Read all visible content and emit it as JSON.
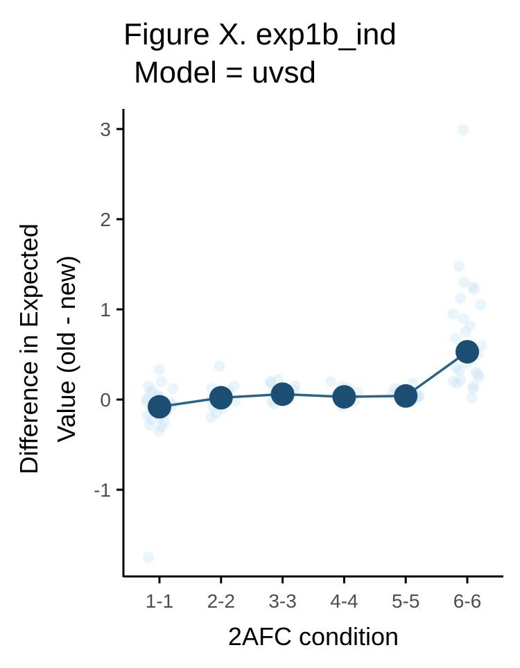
{
  "chart_data": {
    "type": "line",
    "title": "Figure X. exp1b_ind",
    "subtitle": "Model = uvsd",
    "xlabel": "2AFC condition",
    "ylabel_line1": "Difference in Expected",
    "ylabel_line2": "Value (old - new)",
    "categories": [
      "1-1",
      "2-2",
      "3-3",
      "4-4",
      "5-5",
      "6-6"
    ],
    "ylim": [
      -1.95,
      3.2
    ],
    "yticks": [
      -1,
      0,
      1,
      2,
      3
    ],
    "ytick_labels": [
      "-1",
      "0",
      "1",
      "2",
      "3"
    ],
    "grid": false,
    "legend": "none",
    "series": [
      {
        "values": [
          -0.08,
          0.02,
          0.06,
          0.03,
          0.04,
          0.53
        ]
      }
    ],
    "individual_points": [
      {
        "category": "1-1",
        "values": [
          0.33,
          0.2,
          0.15,
          0.1,
          0.05,
          0.02,
          0.0,
          -0.03,
          -0.05,
          -0.08,
          -0.1,
          -0.12,
          -0.15,
          -0.18,
          -0.2,
          -0.22,
          -0.25,
          -0.28,
          -0.3,
          -0.35,
          0.08,
          -0.02,
          -0.06,
          0.12,
          -1.75
        ]
      },
      {
        "category": "2-2",
        "values": [
          0.37,
          0.15,
          0.12,
          0.08,
          0.05,
          0.03,
          0.02,
          0.0,
          -0.02,
          -0.05,
          -0.08,
          -0.1,
          -0.15,
          -0.2,
          0.1,
          0.06
        ]
      },
      {
        "category": "3-3",
        "values": [
          0.22,
          0.2,
          0.15,
          0.12,
          0.1,
          0.08,
          0.06,
          0.05,
          0.03,
          0.02,
          0.0,
          -0.02,
          -0.05,
          0.04,
          0.18
        ]
      },
      {
        "category": "4-4",
        "values": [
          0.2,
          0.15,
          0.12,
          0.1,
          0.08,
          0.05,
          0.03,
          0.02,
          0.0,
          -0.02,
          -0.05,
          -0.08,
          0.06,
          0.04
        ]
      },
      {
        "category": "5-5",
        "values": [
          0.18,
          0.12,
          0.1,
          0.08,
          0.05,
          0.04,
          0.03,
          0.02,
          0.0,
          -0.02,
          -0.03,
          0.06,
          0.01
        ]
      },
      {
        "category": "6-6",
        "values": [
          2.99,
          1.48,
          1.3,
          1.25,
          1.22,
          1.12,
          1.05,
          0.95,
          0.9,
          0.82,
          0.75,
          0.68,
          0.6,
          0.55,
          0.5,
          0.45,
          0.4,
          0.35,
          0.3,
          0.25,
          0.22,
          0.2,
          0.18,
          0.15,
          0.12,
          0.02,
          0.28,
          0.32
        ]
      }
    ],
    "colors": {
      "mean_point": "#1c4e74",
      "mean_line": "#2a6389",
      "individual": "#cfe6f6",
      "axis": "#000000",
      "tick_label": "#4d4d4d"
    }
  }
}
